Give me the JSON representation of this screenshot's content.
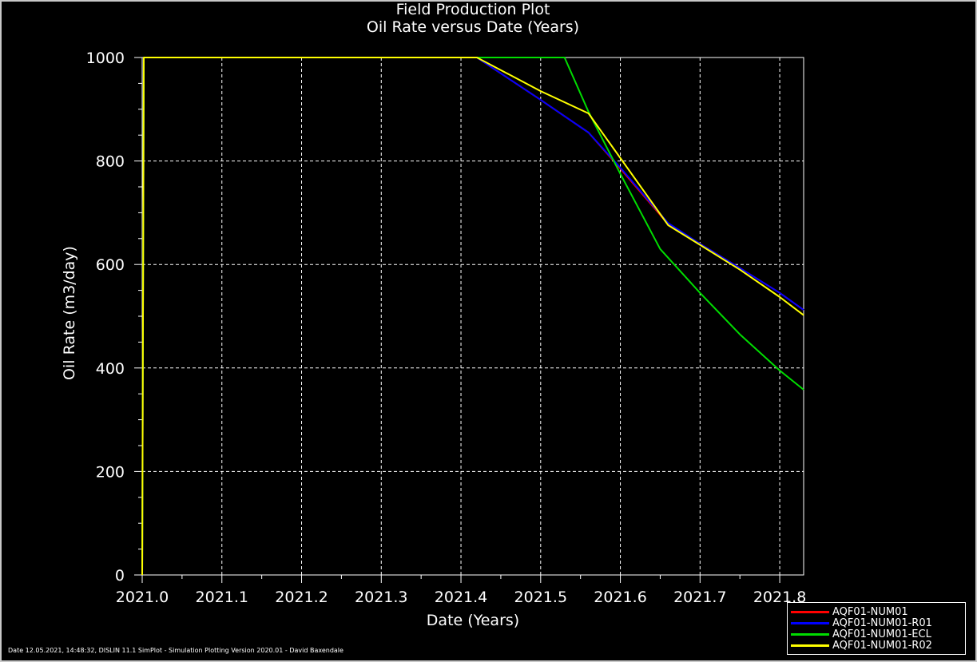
{
  "chart_data": {
    "type": "line",
    "title": "Field Production Plot",
    "subtitle": "Oil Rate versus Date (Years)",
    "xlabel": "Date (Years)",
    "ylabel": "Oil Rate (m3/day)",
    "xlim": [
      2021.0,
      2021.83
    ],
    "ylim": [
      0,
      1000
    ],
    "xticks": [
      "2021.0",
      "2021.1",
      "2021.2",
      "2021.3",
      "2021.4",
      "2021.5",
      "2021.6",
      "2021.7",
      "2021.8"
    ],
    "yticks": [
      "0",
      "200",
      "400",
      "600",
      "800",
      "1000"
    ],
    "grid": true,
    "legend_position": "bottom-right",
    "series": [
      {
        "name": "AQF01-NUM01",
        "color": "#ff0000",
        "x": [
          2021.0,
          2021.002,
          2021.42,
          2021.5,
          2021.56,
          2021.6,
          2021.66,
          2021.7,
          2021.75,
          2021.8,
          2021.83
        ],
        "y": [
          0,
          1000,
          1000,
          918,
          855,
          785,
          678,
          640,
          593,
          545,
          512
        ]
      },
      {
        "name": "AQF01-NUM01-R01",
        "color": "#0000ff",
        "x": [
          2021.0,
          2021.002,
          2021.42,
          2021.5,
          2021.56,
          2021.6,
          2021.66,
          2021.7,
          2021.75,
          2021.8,
          2021.83
        ],
        "y": [
          0,
          1000,
          1000,
          918,
          855,
          787,
          680,
          640,
          593,
          545,
          512
        ]
      },
      {
        "name": "AQF01-NUM01-ECL",
        "color": "#00dd00",
        "x": [
          2021.0,
          2021.002,
          2021.53,
          2021.56,
          2021.6,
          2021.65,
          2021.7,
          2021.75,
          2021.8,
          2021.83
        ],
        "y": [
          0,
          1000,
          1000,
          895,
          775,
          630,
          545,
          465,
          395,
          358
        ]
      },
      {
        "name": "AQF01-NUM01-R02",
        "color": "#ffff00",
        "x": [
          2021.0,
          2021.002,
          2021.42,
          2021.5,
          2021.56,
          2021.66,
          2021.7,
          2021.75,
          2021.8,
          2021.83
        ],
        "y": [
          0,
          1000,
          1000,
          935,
          892,
          676,
          638,
          590,
          537,
          502
        ]
      }
    ]
  },
  "footer": "Date 12.05.2021, 14:48:32, DISLIN 11.1 SimPlot - Simulation Plotting Version 2020.01 - David Baxendale"
}
